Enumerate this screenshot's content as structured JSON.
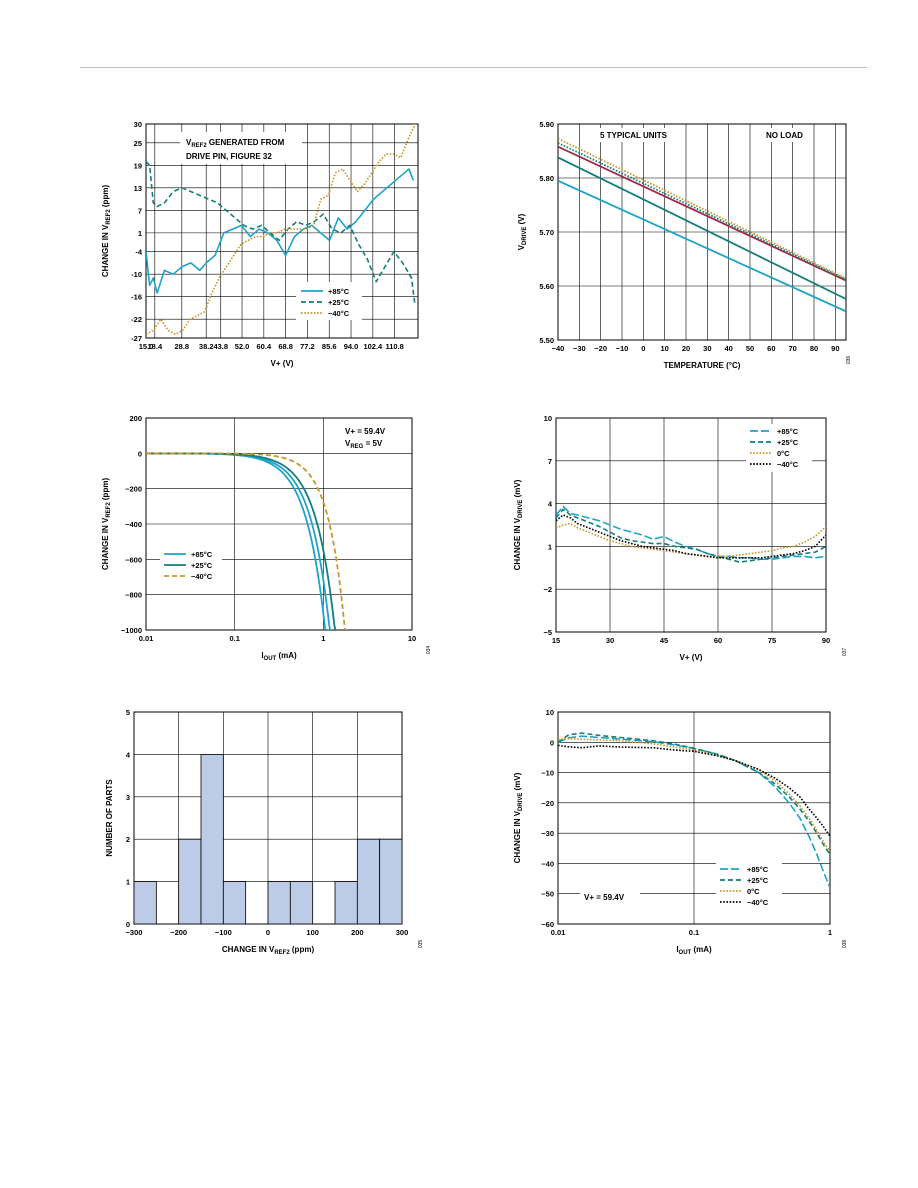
{
  "colors": {
    "c85": "#1fa3c8",
    "c25": "#137f7a",
    "c0": "#c8962a",
    "cm40": "#c8962a",
    "cblk": "#000000",
    "bar": "#bccbe6",
    "maroon": "#a0294a"
  },
  "chart_data": [
    {
      "type": "line",
      "annotation": [
        "V_REF2 GENERATED FROM",
        "DRIVE PIN, FIGURE 32"
      ],
      "xlabel": "V+ (V)",
      "ylabel": "CHANGE IN V_REF2 (ppm)",
      "xlim": [
        15.0,
        119.8
      ],
      "ylim": [
        -27,
        30
      ],
      "xticks": [
        15.0,
        18.4,
        28.8,
        38.2,
        43.8,
        52.0,
        60.4,
        68.8,
        77.2,
        85.6,
        94.0,
        102.4,
        110.8
      ],
      "xticklabels": [
        "15.0",
        "18.4",
        "28.8",
        "38.2",
        "43.8",
        "52.0",
        "60.4",
        "68.8",
        "77.2",
        "85.6",
        "94.0",
        "102.4",
        "110.8"
      ],
      "yticks": [
        30,
        25,
        19,
        13,
        7,
        1,
        -4,
        -10,
        -16,
        -22,
        -27
      ],
      "grid": true,
      "legend": "bottom-right",
      "code": "033",
      "series": [
        {
          "name": "+85°C",
          "color": "c85",
          "dash": "solid",
          "x": [
            15.0,
            16.4,
            17.8,
            19.3,
            20.7,
            22.1,
            25.5,
            28.9,
            32.3,
            35.7,
            38.2,
            41.6,
            45.0,
            48.4,
            51.8,
            55.2,
            58.6,
            62.0,
            65.4,
            68.8,
            72.2,
            75.6,
            78.9,
            82.3,
            85.7,
            89.1,
            92.5,
            95.9,
            99.3,
            102.7,
            106.1,
            109.5,
            112.9,
            116.3,
            118.0
          ],
          "y": [
            -4,
            -13,
            -11,
            -15,
            -12,
            -9,
            -10,
            -8,
            -7,
            -9,
            -7,
            -5,
            1,
            2,
            3,
            0,
            2,
            1,
            -1,
            -5,
            0,
            2,
            3,
            1,
            -1,
            5,
            2,
            4,
            7,
            10,
            12,
            14,
            16,
            18,
            15
          ]
        },
        {
          "name": "+25°C",
          "color": "c25",
          "dash": "dash",
          "x": [
            15.0,
            16.4,
            17.8,
            19.3,
            22.1,
            25.5,
            28.9,
            32.3,
            35.7,
            39.1,
            42.5,
            45.9,
            49.3,
            52.7,
            56.1,
            59.5,
            62.9,
            66.3,
            69.7,
            73.1,
            76.5,
            79.9,
            83.3,
            86.7,
            90.1,
            93.5,
            96.9,
            100.3,
            103.7,
            107.1,
            110.5,
            113.9,
            117.3,
            118.6
          ],
          "y": [
            20,
            19,
            9,
            8,
            9,
            12,
            13,
            12,
            11,
            10,
            9,
            7,
            5,
            3,
            2,
            3,
            1,
            -1,
            2,
            4,
            3,
            4,
            6,
            2,
            1,
            3,
            -2,
            -6,
            -12,
            -8,
            -4,
            -7,
            -11,
            -18
          ]
        },
        {
          "name": "−40°C",
          "color": "cm40",
          "dash": "dot",
          "x": [
            15.0,
            17.8,
            20.7,
            23.5,
            26.3,
            29.1,
            32.0,
            34.8,
            37.6,
            40.4,
            43.2,
            46.0,
            48.8,
            51.6,
            54.4,
            57.2,
            60.0,
            62.8,
            65.6,
            68.4,
            71.2,
            74.0,
            76.8,
            79.6,
            82.4,
            85.2,
            88.0,
            90.8,
            93.6,
            96.4,
            99.2,
            102.0,
            104.8,
            107.6,
            110.4,
            113.2,
            116.0,
            118.8
          ],
          "y": [
            -26,
            -25,
            -22,
            -25,
            -26,
            -25,
            -22,
            -21,
            -20,
            -15,
            -11,
            -8,
            -5,
            -2,
            -1,
            0,
            0,
            1,
            1,
            2,
            2,
            2,
            2,
            3,
            10,
            11,
            17,
            18,
            15,
            12,
            14,
            17,
            20,
            22,
            22,
            21,
            26,
            30
          ]
        }
      ]
    },
    {
      "type": "line",
      "annotation_left": "5 TYPICAL UNITS",
      "annotation_right": "NO LOAD",
      "xlabel": "TEMPERATURE (°C)",
      "ylabel": "V_DRIVE (V)",
      "xlim": [
        -40,
        95
      ],
      "ylim": [
        5.5,
        5.9
      ],
      "xticks": [
        -40,
        -30,
        -20,
        -10,
        0,
        10,
        20,
        30,
        40,
        50,
        60,
        70,
        80,
        90
      ],
      "xticklabels": [
        "−40",
        "−30",
        "−20",
        "−10",
        "0",
        "10",
        "20",
        "30",
        "40",
        "50",
        "60",
        "70",
        "80",
        "90"
      ],
      "yticks": [
        5.5,
        5.6,
        5.7,
        5.8,
        5.9
      ],
      "yticklabels": [
        "5.50",
        "5.60",
        "5.70",
        "5.80",
        "5.90"
      ],
      "grid": true,
      "code": "036",
      "lines": [
        {
          "color": "c85",
          "dash": "solid",
          "y_start": 5.795,
          "y_end": 5.553
        },
        {
          "color": "c25",
          "dash": "solid",
          "y_start": 5.838,
          "y_end": 5.576
        },
        {
          "color": "maroon",
          "dash": "solid",
          "y_start": 5.858,
          "y_end": 5.61
        },
        {
          "color": "c25",
          "dash": "dot",
          "y_start": 5.865,
          "y_end": 5.612
        },
        {
          "color": "cm40",
          "dash": "dot",
          "y_start": 5.873,
          "y_end": 5.614
        }
      ]
    },
    {
      "type": "line",
      "annotation": [
        "V+ = 59.4V",
        "V_REG = 5V"
      ],
      "xlabel": "I_OUT (mA)",
      "ylabel": "CHANGE IN V_REF2 (ppm)",
      "xscale": "log",
      "xlim": [
        0.01,
        10
      ],
      "ylim": [
        -1000,
        200
      ],
      "xticks": [
        0.01,
        0.1,
        1,
        10
      ],
      "xticklabels": [
        "0.01",
        "0.1",
        "1",
        "10"
      ],
      "yticks": [
        200,
        0,
        -200,
        -400,
        -600,
        -800,
        -1000
      ],
      "yticklabels": [
        "200",
        "0",
        "−200",
        "−400",
        "−600",
        "−800",
        "−1000"
      ],
      "grid": true,
      "legend": "bottom-left",
      "code": "034",
      "series": [
        {
          "name": "+85°C",
          "color": "c85",
          "dash": "solid",
          "i1": 1.05,
          "p": 2.0
        },
        {
          "name": "+85°C",
          "color": "c85",
          "dash": "solid",
          "i1": 1.18,
          "p": 2.0
        },
        {
          "name": "+25°C",
          "color": "c25",
          "dash": "solid",
          "i1": 1.35,
          "p": 2.0
        },
        {
          "name": "−40°C",
          "color": "cm40",
          "dash": "dash",
          "i1": 1.75,
          "p": 2.3
        }
      ],
      "legend_entries": [
        {
          "name": "+85°C",
          "color": "c85",
          "dash": "solid"
        },
        {
          "name": "+25°C",
          "color": "c25",
          "dash": "solid"
        },
        {
          "name": "−40°C",
          "color": "cm40",
          "dash": "dash"
        }
      ]
    },
    {
      "type": "line",
      "xlabel": "V+ (V)",
      "ylabel": "CHANGE IN V_DRIVE (mV)",
      "xlim": [
        15,
        90
      ],
      "ylim": [
        -5,
        10
      ],
      "xticks": [
        15,
        30,
        45,
        60,
        75,
        90
      ],
      "yticks": [
        10,
        7,
        4,
        1,
        -2,
        -5
      ],
      "yticklabels": [
        "10",
        "7",
        "4",
        "1",
        "−2",
        "−5"
      ],
      "grid": true,
      "legend": "top-right",
      "code": "037",
      "series": [
        {
          "name": "+85°C",
          "color": "c85",
          "dash": "longdash",
          "x": [
            15,
            17,
            19,
            21,
            24,
            27,
            30,
            33,
            36,
            39,
            42,
            45,
            48,
            51,
            54,
            57,
            60,
            63,
            66,
            69,
            72,
            75,
            78,
            81,
            84,
            87,
            90
          ],
          "y": [
            3.2,
            3.8,
            3.3,
            3.2,
            3.0,
            2.8,
            2.5,
            2.2,
            2.0,
            1.8,
            1.5,
            1.7,
            1.3,
            1.0,
            0.8,
            0.5,
            0.3,
            0.3,
            0.2,
            0.2,
            0.1,
            0.1,
            0.2,
            0.3,
            0.3,
            0.2,
            0.3
          ]
        },
        {
          "name": "+25°C",
          "color": "c25",
          "dash": "dash",
          "x": [
            15,
            17,
            19,
            21,
            24,
            27,
            30,
            33,
            36,
            39,
            42,
            45,
            48,
            51,
            54,
            57,
            60,
            63,
            66,
            69,
            72,
            75,
            78,
            81,
            84,
            87,
            90
          ],
          "y": [
            3.0,
            3.6,
            3.2,
            3.0,
            2.7,
            2.4,
            2.0,
            1.6,
            1.4,
            1.3,
            1.2,
            1.2,
            1.0,
            0.9,
            0.8,
            0.5,
            0.3,
            0.1,
            -0.1,
            0.0,
            0.1,
            0.2,
            0.3,
            0.4,
            0.5,
            0.6,
            1.0
          ]
        },
        {
          "name": "0°C",
          "color": "c0",
          "dash": "dot",
          "x": [
            15,
            17,
            19,
            21,
            24,
            27,
            30,
            33,
            36,
            39,
            42,
            45,
            48,
            51,
            54,
            57,
            60,
            63,
            66,
            69,
            72,
            75,
            78,
            81,
            84,
            87,
            90
          ],
          "y": [
            2.3,
            2.5,
            2.6,
            2.3,
            2.0,
            1.7,
            1.4,
            1.2,
            1.0,
            0.9,
            0.8,
            0.7,
            0.6,
            0.5,
            0.4,
            0.3,
            0.3,
            0.3,
            0.4,
            0.5,
            0.6,
            0.7,
            0.9,
            1.0,
            1.3,
            1.7,
            2.4
          ]
        },
        {
          "name": "−40°C",
          "color": "cblk",
          "dash": "dot",
          "x": [
            15,
            17,
            19,
            21,
            24,
            27,
            30,
            33,
            36,
            39,
            42,
            45,
            48,
            51,
            54,
            57,
            60,
            63,
            66,
            69,
            72,
            75,
            78,
            81,
            84,
            87,
            90
          ],
          "y": [
            2.8,
            3.2,
            3.0,
            2.6,
            2.3,
            2.0,
            1.7,
            1.4,
            1.2,
            1.0,
            0.9,
            0.8,
            0.7,
            0.5,
            0.4,
            0.3,
            0.2,
            0.2,
            0.2,
            0.2,
            0.2,
            0.3,
            0.4,
            0.5,
            0.7,
            1.0,
            1.8
          ]
        }
      ]
    },
    {
      "type": "bar",
      "xlabel": "CHANGE IN V_REF2 (ppm)",
      "ylabel": "NUMBER OF PARTS",
      "xlim": [
        -300,
        300
      ],
      "ylim": [
        0,
        5
      ],
      "xticks": [
        -300,
        -200,
        -100,
        0,
        100,
        200,
        300
      ],
      "xticklabels": [
        "−300",
        "−200",
        "−100",
        "0",
        "100",
        "200",
        "300"
      ],
      "yticks": [
        0,
        1,
        2,
        3,
        4,
        5
      ],
      "grid": true,
      "code": "035",
      "bin_edges": [
        -300,
        -250,
        -200,
        -150,
        -100,
        -50,
        0,
        50,
        100,
        150,
        200,
        250,
        300
      ],
      "counts": [
        1,
        0,
        2,
        4,
        1,
        0,
        1,
        1,
        0,
        1,
        2,
        2
      ]
    },
    {
      "type": "line",
      "annotation": "V+ = 59.4V",
      "xlabel": "I_OUT (mA)",
      "ylabel": "CHANGE IN V_DRIVE (mV)",
      "xscale": "log",
      "xlim": [
        0.01,
        1
      ],
      "ylim": [
        -60,
        10
      ],
      "xticks": [
        0.01,
        0.1,
        1
      ],
      "xticklabels": [
        "0.01",
        "0.1",
        "1"
      ],
      "yticks": [
        10,
        0,
        -10,
        -20,
        -30,
        -40,
        -50,
        -60
      ],
      "yticklabels": [
        "10",
        "0",
        "−10",
        "−20",
        "−30",
        "−40",
        "−50",
        "−60"
      ],
      "grid": true,
      "legend": "bottom-right",
      "code": "038",
      "series": [
        {
          "name": "+85°C",
          "color": "c85",
          "dash": "longdash",
          "x": [
            0.01,
            0.012,
            0.015,
            0.02,
            0.03,
            0.05,
            0.07,
            0.1,
            0.15,
            0.2,
            0.3,
            0.4,
            0.5,
            0.6,
            0.7,
            0.8,
            0.9,
            1.0
          ],
          "y": [
            0,
            1.5,
            2,
            1.6,
            1.0,
            0.2,
            -0.8,
            -2,
            -4,
            -6,
            -10,
            -15,
            -20,
            -25,
            -31,
            -37,
            -43,
            -48
          ]
        },
        {
          "name": "+25°C",
          "color": "c25",
          "dash": "dash",
          "x": [
            0.01,
            0.012,
            0.015,
            0.02,
            0.03,
            0.05,
            0.07,
            0.1,
            0.15,
            0.2,
            0.3,
            0.4,
            0.5,
            0.6,
            0.7,
            0.8,
            0.9,
            1.0
          ],
          "y": [
            0,
            2.5,
            3,
            2.3,
            1.5,
            0.5,
            -0.5,
            -2,
            -4,
            -6,
            -10,
            -14,
            -18,
            -22,
            -26,
            -30,
            -34,
            -37
          ]
        },
        {
          "name": "0°C",
          "color": "c0",
          "dash": "dot",
          "x": [
            0.01,
            0.012,
            0.015,
            0.02,
            0.03,
            0.05,
            0.07,
            0.1,
            0.15,
            0.2,
            0.3,
            0.4,
            0.5,
            0.6,
            0.7,
            0.8,
            0.9,
            1.0
          ],
          "y": [
            1,
            1.2,
            1.0,
            0.8,
            0.5,
            -0.5,
            -1.5,
            -2.5,
            -4.5,
            -6,
            -9,
            -13,
            -17,
            -21,
            -25,
            -29,
            -33,
            -36
          ]
        },
        {
          "name": "−40°C",
          "color": "cblk",
          "dash": "dot",
          "x": [
            0.01,
            0.012,
            0.015,
            0.02,
            0.03,
            0.05,
            0.07,
            0.1,
            0.15,
            0.2,
            0.3,
            0.4,
            0.5,
            0.6,
            0.7,
            0.8,
            0.9,
            1.0
          ],
          "y": [
            -1,
            -1.5,
            -1.8,
            -1.2,
            -1.6,
            -1.8,
            -2.5,
            -3,
            -4.5,
            -6,
            -9,
            -12,
            -15,
            -18,
            -22,
            -25,
            -28,
            -31
          ]
        }
      ]
    }
  ]
}
